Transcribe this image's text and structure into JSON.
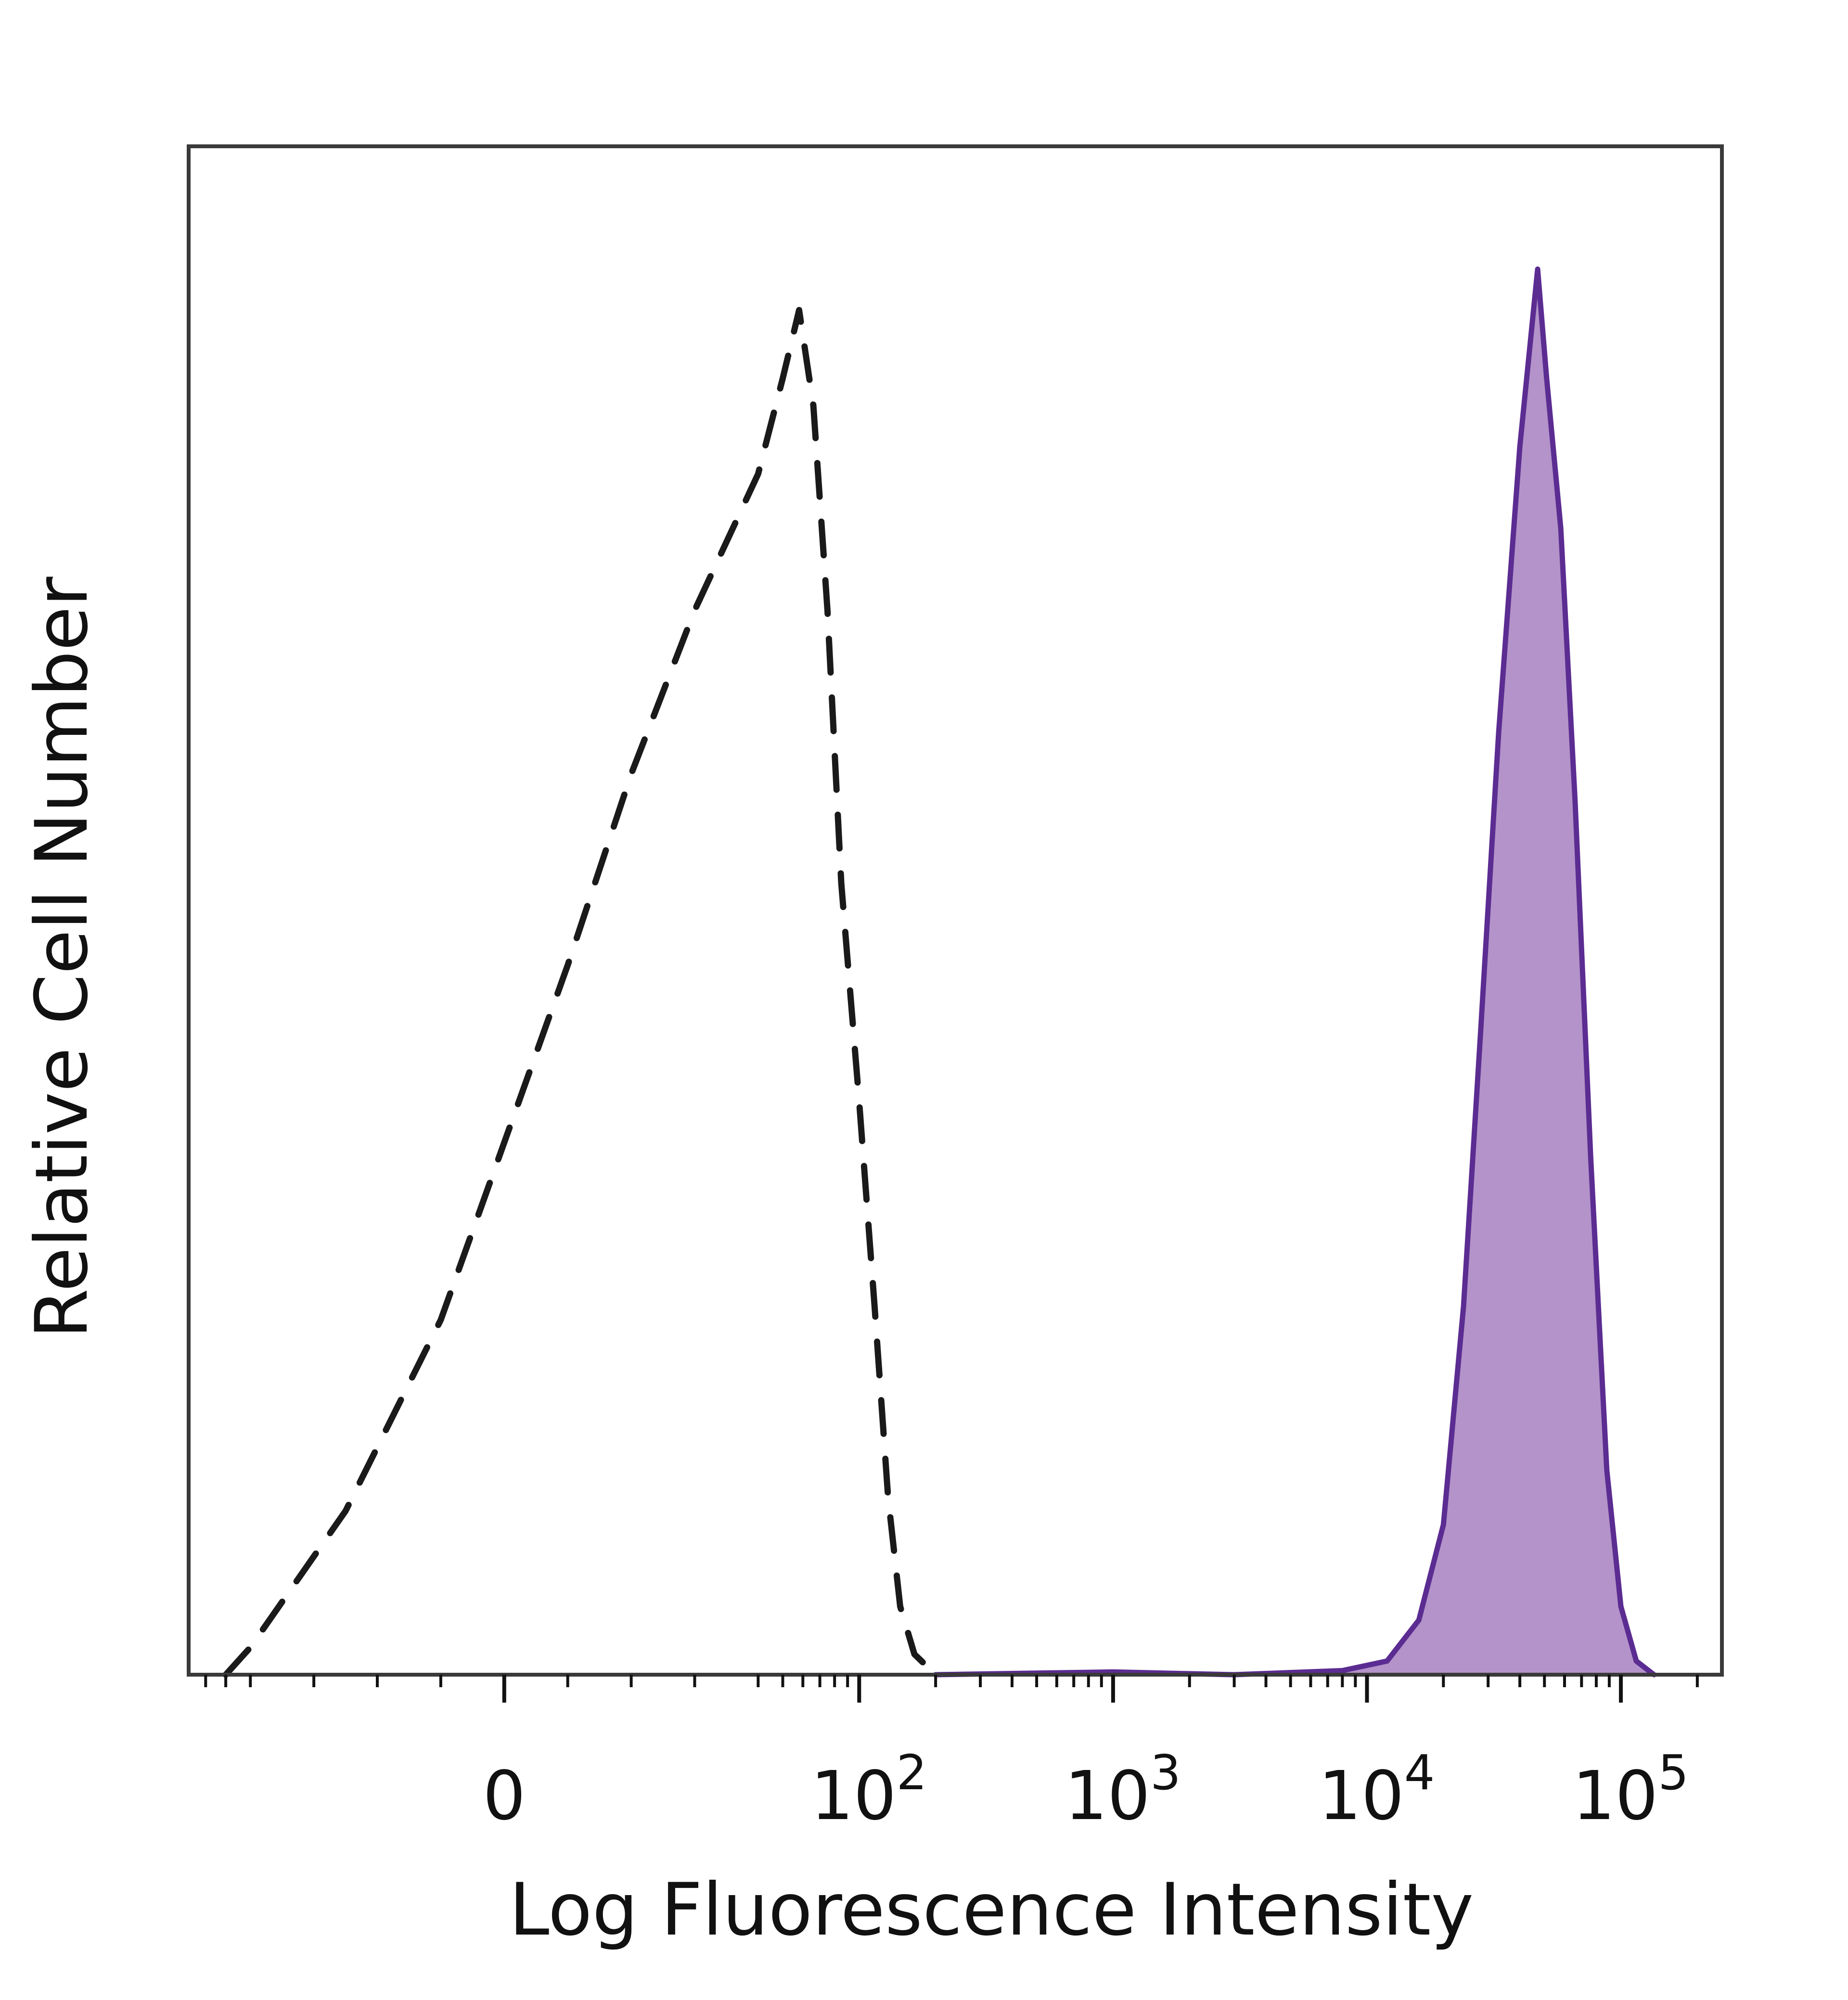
{
  "chart_data": {
    "type": "area",
    "xlabel": "Log Fluorescence Intensity",
    "ylabel": "Relative Cell Number",
    "x_scale": "biexponential",
    "x_ticks": [
      {
        "value": 0,
        "label": "0"
      },
      {
        "value": 100,
        "label": "10",
        "exponent": "2"
      },
      {
        "value": 1000,
        "label": "10",
        "exponent": "3"
      },
      {
        "value": 10000,
        "label": "10",
        "exponent": "4"
      },
      {
        "value": 100000,
        "label": "10",
        "exponent": "5"
      }
    ],
    "xlim": [
      -70,
      250000
    ],
    "ylim": [
      0,
      1.12
    ],
    "grid": false,
    "legend": "none",
    "series": [
      {
        "style": "dashed",
        "color": "#1a1a1a",
        "fill": "none",
        "points": [
          [
            -50,
            0.0
          ],
          [
            -40,
            0.02
          ],
          [
            -25,
            0.12
          ],
          [
            -10,
            0.26
          ],
          [
            0,
            0.39
          ],
          [
            10,
            0.52
          ],
          [
            20,
            0.66
          ],
          [
            30,
            0.78
          ],
          [
            40,
            0.88
          ],
          [
            50,
            0.95
          ],
          [
            58,
            1.0
          ],
          [
            66,
            0.93
          ],
          [
            75,
            0.78
          ],
          [
            85,
            0.58
          ],
          [
            100,
            0.42
          ],
          [
            115,
            0.27
          ],
          [
            130,
            0.13
          ],
          [
            145,
            0.05
          ],
          [
            165,
            0.015
          ],
          [
            200,
            0.0
          ]
        ]
      },
      {
        "style": "solid",
        "color": "#5b2c91",
        "fill": "#b393c9",
        "points": [
          [
            200,
            0.0
          ],
          [
            1000,
            0.002
          ],
          [
            3000,
            0.0
          ],
          [
            8000,
            0.003
          ],
          [
            12000,
            0.01
          ],
          [
            16000,
            0.04
          ],
          [
            20000,
            0.11
          ],
          [
            24000,
            0.27
          ],
          [
            28000,
            0.47
          ],
          [
            33000,
            0.69
          ],
          [
            40000,
            0.9
          ],
          [
            47000,
            1.03
          ],
          [
            51000,
            0.95
          ],
          [
            58000,
            0.84
          ],
          [
            66000,
            0.64
          ],
          [
            76000,
            0.38
          ],
          [
            88000,
            0.15
          ],
          [
            100000,
            0.05
          ],
          [
            115000,
            0.01
          ],
          [
            135000,
            0.0
          ]
        ]
      }
    ]
  }
}
